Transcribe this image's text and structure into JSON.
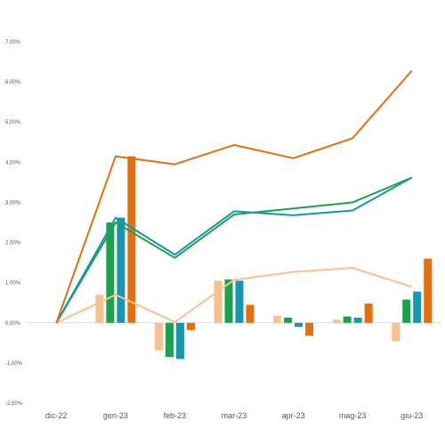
{
  "chart_data": {
    "type": "bar",
    "categories": [
      "dic-22",
      "gen-23",
      "feb-23",
      "mar-23",
      "apr-23",
      "mag-23",
      "giu-23"
    ],
    "ylim": [
      -2.0,
      7.0
    ],
    "ytick_step": 1.0,
    "yticks": [
      "7,00%",
      "6,00%",
      "5,00%",
      "4,00%",
      "3,00%",
      "2,00%",
      "1,00%",
      "0,00%",
      "-1,00%",
      "-2,00%"
    ],
    "grid": false,
    "legend": "none",
    "bar_series": [
      {
        "color": "#FAC090",
        "values": [
          null,
          0.7,
          -0.68,
          1.05,
          0.18,
          0.08,
          -0.45
        ]
      },
      {
        "color": "#1BA24A",
        "values": [
          null,
          2.5,
          -0.85,
          1.08,
          0.13,
          0.16,
          0.58
        ]
      },
      {
        "color": "#1796B0",
        "values": [
          null,
          2.62,
          -0.9,
          1.05,
          -0.1,
          0.13,
          0.78
        ]
      },
      {
        "color": "#E2700F",
        "values": [
          null,
          4.15,
          -0.18,
          0.45,
          -0.32,
          0.48,
          1.6
        ]
      }
    ],
    "line_series": [
      {
        "color": "#FAC090",
        "values": [
          0.0,
          0.7,
          0.02,
          1.07,
          1.27,
          1.37,
          0.9
        ]
      },
      {
        "color": "#1BA24A",
        "values": [
          0.0,
          2.5,
          1.62,
          2.7,
          2.85,
          3.0,
          3.62
        ]
      },
      {
        "color": "#1796B0",
        "values": [
          0.0,
          2.62,
          1.7,
          2.78,
          2.68,
          2.8,
          3.62
        ]
      },
      {
        "color": "#E2700F",
        "values": [
          0.0,
          4.15,
          3.95,
          4.43,
          4.1,
          4.6,
          6.28
        ]
      }
    ]
  }
}
